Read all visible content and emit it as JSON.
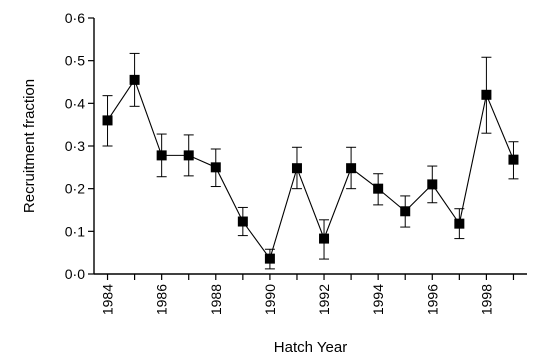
{
  "chart_data": {
    "type": "line",
    "title": "",
    "xlabel": "Hatch Year",
    "ylabel": "Recruitment fraction",
    "xlim": [
      1983.5,
      1999.5
    ],
    "ylim": [
      0,
      0.6
    ],
    "x_ticks": [
      1984,
      1986,
      1988,
      1990,
      1992,
      1994,
      1996,
      1998
    ],
    "x_tick_labels": [
      "1984",
      "1986",
      "1988",
      "1990",
      "1992",
      "1994",
      "1996",
      "1998"
    ],
    "y_ticks": [
      0.0,
      0.1,
      0.2,
      0.3,
      0.4,
      0.5,
      0.6
    ],
    "y_tick_labels": [
      "0·0",
      "0·1",
      "0·2",
      "0·3",
      "0·4",
      "0·5",
      "0·6"
    ],
    "grid": false,
    "marker": "filled-square",
    "series": [
      {
        "x": [
          1984,
          1985,
          1986,
          1987,
          1988,
          1989,
          1990,
          1991,
          1992,
          1993,
          1994,
          1995,
          1996,
          1997,
          1998,
          1999
        ],
        "values": [
          0.36,
          0.455,
          0.278,
          0.278,
          0.25,
          0.123,
          0.036,
          0.248,
          0.083,
          0.248,
          0.2,
          0.147,
          0.21,
          0.118,
          0.42,
          0.268
        ],
        "error_upper": [
          0.418,
          0.517,
          0.328,
          0.326,
          0.293,
          0.156,
          0.058,
          0.297,
          0.127,
          0.297,
          0.235,
          0.183,
          0.253,
          0.153,
          0.508,
          0.31
        ],
        "error_lower": [
          0.3,
          0.393,
          0.228,
          0.23,
          0.205,
          0.09,
          0.012,
          0.2,
          0.035,
          0.2,
          0.162,
          0.11,
          0.167,
          0.083,
          0.33,
          0.223
        ]
      }
    ]
  }
}
